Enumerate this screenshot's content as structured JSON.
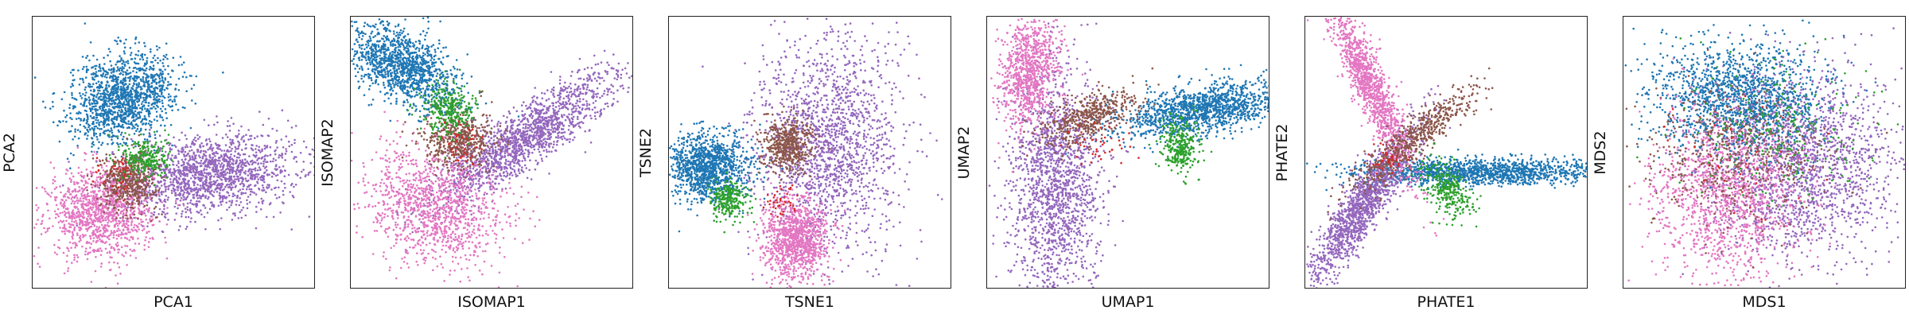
{
  "chart_data": [
    {
      "type": "scatter",
      "xlabel": "PCA1",
      "ylabel": "PCA2",
      "xlim": [
        0,
        1
      ],
      "ylim": [
        0,
        1
      ],
      "clusters": [
        {
          "color": "#1f77b4",
          "center": [
            0.32,
            0.7
          ],
          "spread": [
            0.075,
            0.1
          ],
          "angle": -55,
          "count": 1400
        },
        {
          "color": "#9467bd",
          "center": [
            0.62,
            0.42
          ],
          "spread": [
            0.16,
            0.07
          ],
          "angle": 8,
          "count": 1600
        },
        {
          "color": "#e377c2",
          "center": [
            0.24,
            0.28
          ],
          "spread": [
            0.09,
            0.08
          ],
          "angle": 0,
          "count": 1200
        },
        {
          "color": "#8c564b",
          "center": [
            0.34,
            0.4
          ],
          "spread": [
            0.05,
            0.05
          ],
          "angle": 0,
          "count": 500
        },
        {
          "color": "#2ca02c",
          "center": [
            0.4,
            0.48
          ],
          "spread": [
            0.04,
            0.04
          ],
          "angle": 0,
          "count": 250
        },
        {
          "color": "#d62728",
          "center": [
            0.3,
            0.42
          ],
          "spread": [
            0.04,
            0.04
          ],
          "angle": 0,
          "count": 40
        }
      ]
    },
    {
      "type": "scatter",
      "xlabel": "ISOMAP1",
      "ylabel": "ISOMAP2",
      "xlim": [
        0,
        1
      ],
      "ylim": [
        0,
        1
      ],
      "clusters": [
        {
          "color": "#1f77b4",
          "center": [
            0.18,
            0.82
          ],
          "spread": [
            0.11,
            0.06
          ],
          "angle": -35,
          "count": 1300
        },
        {
          "color": "#9467bd",
          "center": [
            0.62,
            0.56
          ],
          "spread": [
            0.2,
            0.05
          ],
          "angle": 35,
          "count": 1600
        },
        {
          "color": "#e377c2",
          "center": [
            0.3,
            0.3
          ],
          "spread": [
            0.1,
            0.13
          ],
          "angle": 60,
          "count": 1200
        },
        {
          "color": "#8c564b",
          "center": [
            0.38,
            0.55
          ],
          "spread": [
            0.06,
            0.05
          ],
          "angle": 0,
          "count": 500
        },
        {
          "color": "#2ca02c",
          "center": [
            0.34,
            0.66
          ],
          "spread": [
            0.05,
            0.05
          ],
          "angle": 0,
          "count": 300
        },
        {
          "color": "#d62728",
          "center": [
            0.4,
            0.52
          ],
          "spread": [
            0.04,
            0.04
          ],
          "angle": 0,
          "count": 40
        }
      ]
    },
    {
      "type": "scatter",
      "xlabel": "TSNE1",
      "ylabel": "TSNE2",
      "xlim": [
        0,
        1
      ],
      "ylim": [
        0,
        1
      ],
      "clusters": [
        {
          "color": "#9467bd",
          "center": [
            0.56,
            0.52
          ],
          "spread": [
            0.13,
            0.2
          ],
          "angle": 0,
          "count": 1700
        },
        {
          "color": "#1f77b4",
          "center": [
            0.14,
            0.45
          ],
          "spread": [
            0.07,
            0.06
          ],
          "angle": 0,
          "count": 1200
        },
        {
          "color": "#e377c2",
          "center": [
            0.45,
            0.18
          ],
          "spread": [
            0.055,
            0.07
          ],
          "angle": 0,
          "count": 1100
        },
        {
          "color": "#8c564b",
          "center": [
            0.42,
            0.53
          ],
          "spread": [
            0.045,
            0.05
          ],
          "angle": 0,
          "count": 500
        },
        {
          "color": "#2ca02c",
          "center": [
            0.21,
            0.33
          ],
          "spread": [
            0.03,
            0.035
          ],
          "angle": 0,
          "count": 260
        },
        {
          "color": "#d62728",
          "center": [
            0.4,
            0.33
          ],
          "spread": [
            0.03,
            0.03
          ],
          "angle": 0,
          "count": 40
        }
      ]
    },
    {
      "type": "scatter",
      "xlabel": "UMAP1",
      "ylabel": "UMAP2",
      "xlim": [
        0,
        1
      ],
      "ylim": [
        0,
        1
      ],
      "clusters": [
        {
          "color": "#1f77b4",
          "center": [
            0.76,
            0.66
          ],
          "spread": [
            0.16,
            0.045
          ],
          "angle": 10,
          "count": 1400
        },
        {
          "color": "#9467bd",
          "center": [
            0.24,
            0.38
          ],
          "spread": [
            0.08,
            0.22
          ],
          "angle": 0,
          "count": 1700
        },
        {
          "color": "#e377c2",
          "center": [
            0.15,
            0.8
          ],
          "spread": [
            0.05,
            0.1
          ],
          "angle": -10,
          "count": 900
        },
        {
          "color": "#8c564b",
          "center": [
            0.36,
            0.63
          ],
          "spread": [
            0.09,
            0.04
          ],
          "angle": 25,
          "count": 500
        },
        {
          "color": "#2ca02c",
          "center": [
            0.68,
            0.52
          ],
          "spread": [
            0.035,
            0.05
          ],
          "angle": 0,
          "count": 300
        },
        {
          "color": "#d62728",
          "center": [
            0.4,
            0.54
          ],
          "spread": [
            0.05,
            0.04
          ],
          "angle": 0,
          "count": 40
        }
      ]
    },
    {
      "type": "scatter",
      "xlabel": "PHATE1",
      "ylabel": "PHATE2",
      "xlim": [
        0,
        1
      ],
      "ylim": [
        0,
        1
      ],
      "clusters": [
        {
          "color": "#1f77b4",
          "center": [
            0.62,
            0.43
          ],
          "spread": [
            0.22,
            0.025
          ],
          "angle": 0,
          "count": 1400
        },
        {
          "color": "#9467bd",
          "center": [
            0.2,
            0.3
          ],
          "spread": [
            0.17,
            0.035
          ],
          "angle": 58,
          "count": 1400
        },
        {
          "color": "#e377c2",
          "center": [
            0.23,
            0.75
          ],
          "spread": [
            0.18,
            0.03
          ],
          "angle": -66,
          "count": 1200
        },
        {
          "color": "#8c564b",
          "center": [
            0.38,
            0.55
          ],
          "spread": [
            0.14,
            0.03
          ],
          "angle": 40,
          "count": 600
        },
        {
          "color": "#2ca02c",
          "center": [
            0.5,
            0.36
          ],
          "spread": [
            0.06,
            0.035
          ],
          "angle": -55,
          "count": 300
        },
        {
          "color": "#d62728",
          "center": [
            0.3,
            0.48
          ],
          "spread": [
            0.03,
            0.03
          ],
          "angle": 0,
          "count": 40
        }
      ]
    },
    {
      "type": "scatter",
      "xlabel": "MDS1",
      "ylabel": "MDS2",
      "xlim": [
        0,
        1
      ],
      "ylim": [
        0,
        1
      ],
      "clusters": [
        {
          "color": "#9467bd",
          "center": [
            0.63,
            0.46
          ],
          "spread": [
            0.16,
            0.17
          ],
          "angle": 0,
          "count": 1800
        },
        {
          "color": "#1f77b4",
          "center": [
            0.4,
            0.7
          ],
          "spread": [
            0.15,
            0.1
          ],
          "angle": 0,
          "count": 1500
        },
        {
          "color": "#e377c2",
          "center": [
            0.36,
            0.34
          ],
          "spread": [
            0.13,
            0.15
          ],
          "angle": 0,
          "count": 1300
        },
        {
          "color": "#8c564b",
          "center": [
            0.4,
            0.5
          ],
          "spread": [
            0.15,
            0.12
          ],
          "angle": 0,
          "count": 500
        },
        {
          "color": "#2ca02c",
          "center": [
            0.55,
            0.6
          ],
          "spread": [
            0.16,
            0.13
          ],
          "angle": 0,
          "count": 250
        },
        {
          "color": "#d62728",
          "center": [
            0.4,
            0.5
          ],
          "spread": [
            0.14,
            0.13
          ],
          "angle": 0,
          "count": 40
        }
      ]
    }
  ]
}
